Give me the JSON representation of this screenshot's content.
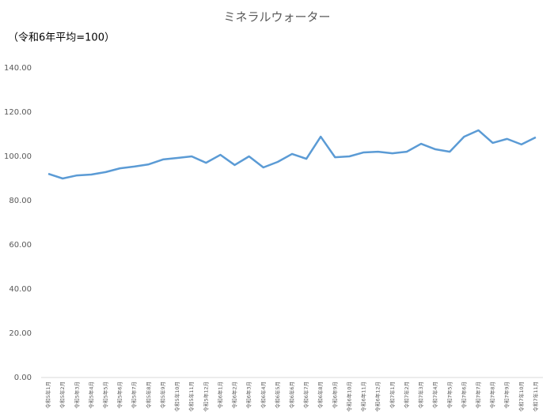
{
  "chart_data": {
    "type": "line",
    "title": "ミネラルウォーター",
    "subtitle": "（令和6年平均=100）",
    "categories": [
      "令和5年1月",
      "令和5年2月",
      "令和5年3月",
      "令和5年4月",
      "令和5年5月",
      "令和5年6月",
      "令和5年7月",
      "令和5年8月",
      "令和5年9月",
      "令和5年10月",
      "令和5年11月",
      "令和5年12月",
      "令和6年1月",
      "令和6年2月",
      "令和6年3月",
      "令和6年4月",
      "令和6年5月",
      "令和6年6月",
      "令和6年7月",
      "令和6年8月",
      "令和6年9月",
      "令和6年10月",
      "令和6年11月",
      "令和6年12月",
      "令和7年1月",
      "令和7年2月",
      "令和7年3月",
      "令和7年4月",
      "令和7年5月",
      "令和7年6月",
      "令和7年7月",
      "令和7年8月",
      "令和7年9月",
      "令和7年10月",
      "令和7年11月"
    ],
    "series": [
      {
        "color": "#5b9bd5",
        "values": [
          92.1,
          90.0,
          91.4,
          91.8,
          92.9,
          94.6,
          95.4,
          96.4,
          98.6,
          99.3,
          100.0,
          97.1,
          100.7,
          96.1,
          100.0,
          95.0,
          97.5,
          101.1,
          98.9,
          108.9,
          99.6,
          100.0,
          101.8,
          102.1,
          101.4,
          102.1,
          105.7,
          103.2,
          102.1,
          108.9,
          111.8,
          106.1,
          107.9,
          105.4,
          108.6
        ]
      }
    ],
    "ylim": [
      0,
      140
    ],
    "yticks": [
      {
        "value": 0,
        "label": "0.00"
      },
      {
        "value": 20,
        "label": "20.00"
      },
      {
        "value": 40,
        "label": "40.00"
      },
      {
        "value": 60,
        "label": "60.00"
      },
      {
        "value": 80,
        "label": "80.00"
      },
      {
        "value": 100,
        "label": "100.00"
      },
      {
        "value": 120,
        "label": "120.00"
      },
      {
        "value": 140,
        "label": "140.00"
      }
    ],
    "grid": false
  }
}
